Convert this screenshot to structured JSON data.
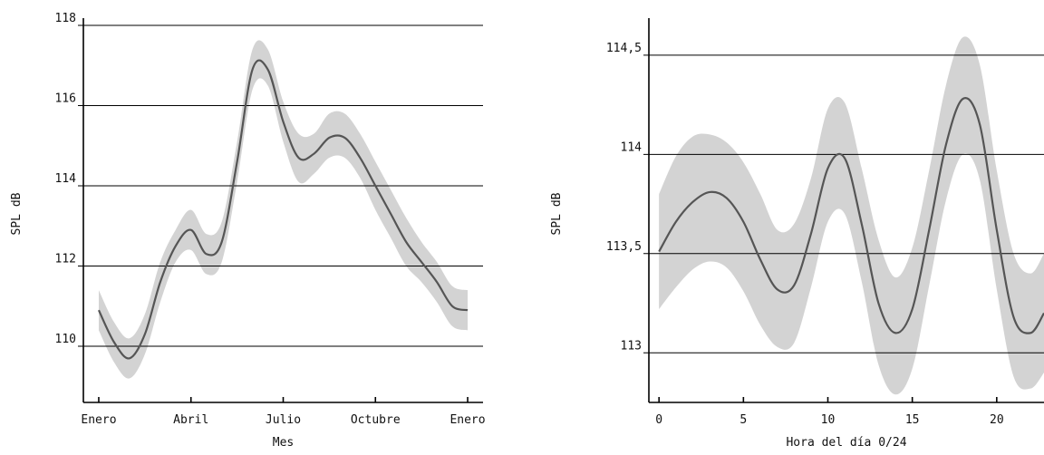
{
  "chart_data": [
    {
      "type": "line",
      "title": "",
      "xlabel": "Mes",
      "ylabel": "SPL dB",
      "xlim": [
        -0.5,
        12.5
      ],
      "ylim": [
        108.6,
        118
      ],
      "grid": "horizontal",
      "colors": {
        "line": "#555555",
        "band": "#d3d3d3",
        "grid": "#000000",
        "axis": "#000000"
      },
      "xticks": [
        {
          "value": 0,
          "label": "Enero"
        },
        {
          "value": 3,
          "label": "Abril"
        },
        {
          "value": 6,
          "label": "Julio"
        },
        {
          "value": 9,
          "label": "Octubre"
        },
        {
          "value": 12,
          "label": "Enero"
        }
      ],
      "yticks": [
        {
          "value": 110,
          "label": "110"
        },
        {
          "value": 112,
          "label": "112"
        },
        {
          "value": 114,
          "label": "114"
        },
        {
          "value": 116,
          "label": "116"
        },
        {
          "value": 118,
          "label": "118"
        }
      ],
      "series": [
        {
          "x": [
            0,
            0.5,
            1,
            1.5,
            2,
            2.5,
            3,
            3.5,
            4,
            4.5,
            5,
            5.5,
            6,
            6.5,
            7,
            7.5,
            8,
            8.5,
            9,
            9.5,
            10,
            10.5,
            11,
            11.5,
            12
          ],
          "y": [
            110.9,
            110.1,
            109.7,
            110.3,
            111.6,
            112.5,
            112.9,
            112.3,
            112.6,
            114.6,
            116.9,
            116.9,
            115.6,
            114.7,
            114.8,
            115.2,
            115.2,
            114.7,
            114.0,
            113.3,
            112.6,
            112.1,
            111.6,
            111.0,
            110.9
          ],
          "lower": [
            110.4,
            109.6,
            109.2,
            109.8,
            111.1,
            112.1,
            112.4,
            111.8,
            112.1,
            114.1,
            116.4,
            116.5,
            115.1,
            114.1,
            114.3,
            114.7,
            114.7,
            114.2,
            113.4,
            112.7,
            112.0,
            111.6,
            111.1,
            110.5,
            110.4
          ],
          "upper": [
            111.4,
            110.6,
            110.2,
            110.8,
            112.1,
            112.9,
            113.4,
            112.8,
            113.1,
            115.1,
            117.4,
            117.4,
            116.1,
            115.3,
            115.3,
            115.8,
            115.8,
            115.3,
            114.6,
            113.9,
            113.2,
            112.6,
            112.1,
            111.5,
            111.4
          ]
        }
      ]
    },
    {
      "type": "line",
      "title": "",
      "xlabel": "Hora del día 0/24",
      "ylabel": "SPL dB",
      "xlim": [
        -0.6,
        22.8
      ],
      "ylim": [
        112.75,
        114.65
      ],
      "grid": "horizontal",
      "colors": {
        "line": "#555555",
        "band": "#d3d3d3",
        "grid": "#000000",
        "axis": "#000000"
      },
      "xticks": [
        {
          "value": 0,
          "label": "0"
        },
        {
          "value": 5,
          "label": "5"
        },
        {
          "value": 10,
          "label": "10"
        },
        {
          "value": 15,
          "label": "15"
        },
        {
          "value": 20,
          "label": "20"
        }
      ],
      "yticks": [
        {
          "value": 113,
          "label": "113"
        },
        {
          "value": 113.5,
          "label": "113,5"
        },
        {
          "value": 114,
          "label": "114"
        },
        {
          "value": 114.5,
          "label": "114,5"
        }
      ],
      "series": [
        {
          "x": [
            0,
            1,
            2,
            3,
            4,
            5,
            6,
            7,
            8,
            9,
            10,
            11,
            12,
            13,
            14,
            15,
            16,
            17,
            18,
            19,
            20,
            21,
            22,
            22.8
          ],
          "y": [
            113.51,
            113.66,
            113.76,
            113.81,
            113.78,
            113.66,
            113.47,
            113.32,
            113.34,
            113.6,
            113.93,
            113.98,
            113.65,
            113.25,
            113.1,
            113.22,
            113.62,
            114.05,
            114.28,
            114.15,
            113.62,
            113.18,
            113.1,
            113.2
          ],
          "lower": [
            113.22,
            113.33,
            113.42,
            113.46,
            113.43,
            113.31,
            113.14,
            113.03,
            113.05,
            113.33,
            113.66,
            113.7,
            113.36,
            112.94,
            112.79,
            112.92,
            113.34,
            113.77,
            114.0,
            113.87,
            113.32,
            112.88,
            112.82,
            112.9
          ],
          "upper": [
            113.8,
            113.99,
            114.09,
            114.1,
            114.06,
            113.96,
            113.8,
            113.62,
            113.65,
            113.88,
            114.23,
            114.26,
            113.93,
            113.57,
            113.38,
            113.53,
            113.92,
            114.35,
            114.59,
            114.45,
            113.92,
            113.5,
            113.4,
            113.5
          ]
        }
      ]
    }
  ]
}
